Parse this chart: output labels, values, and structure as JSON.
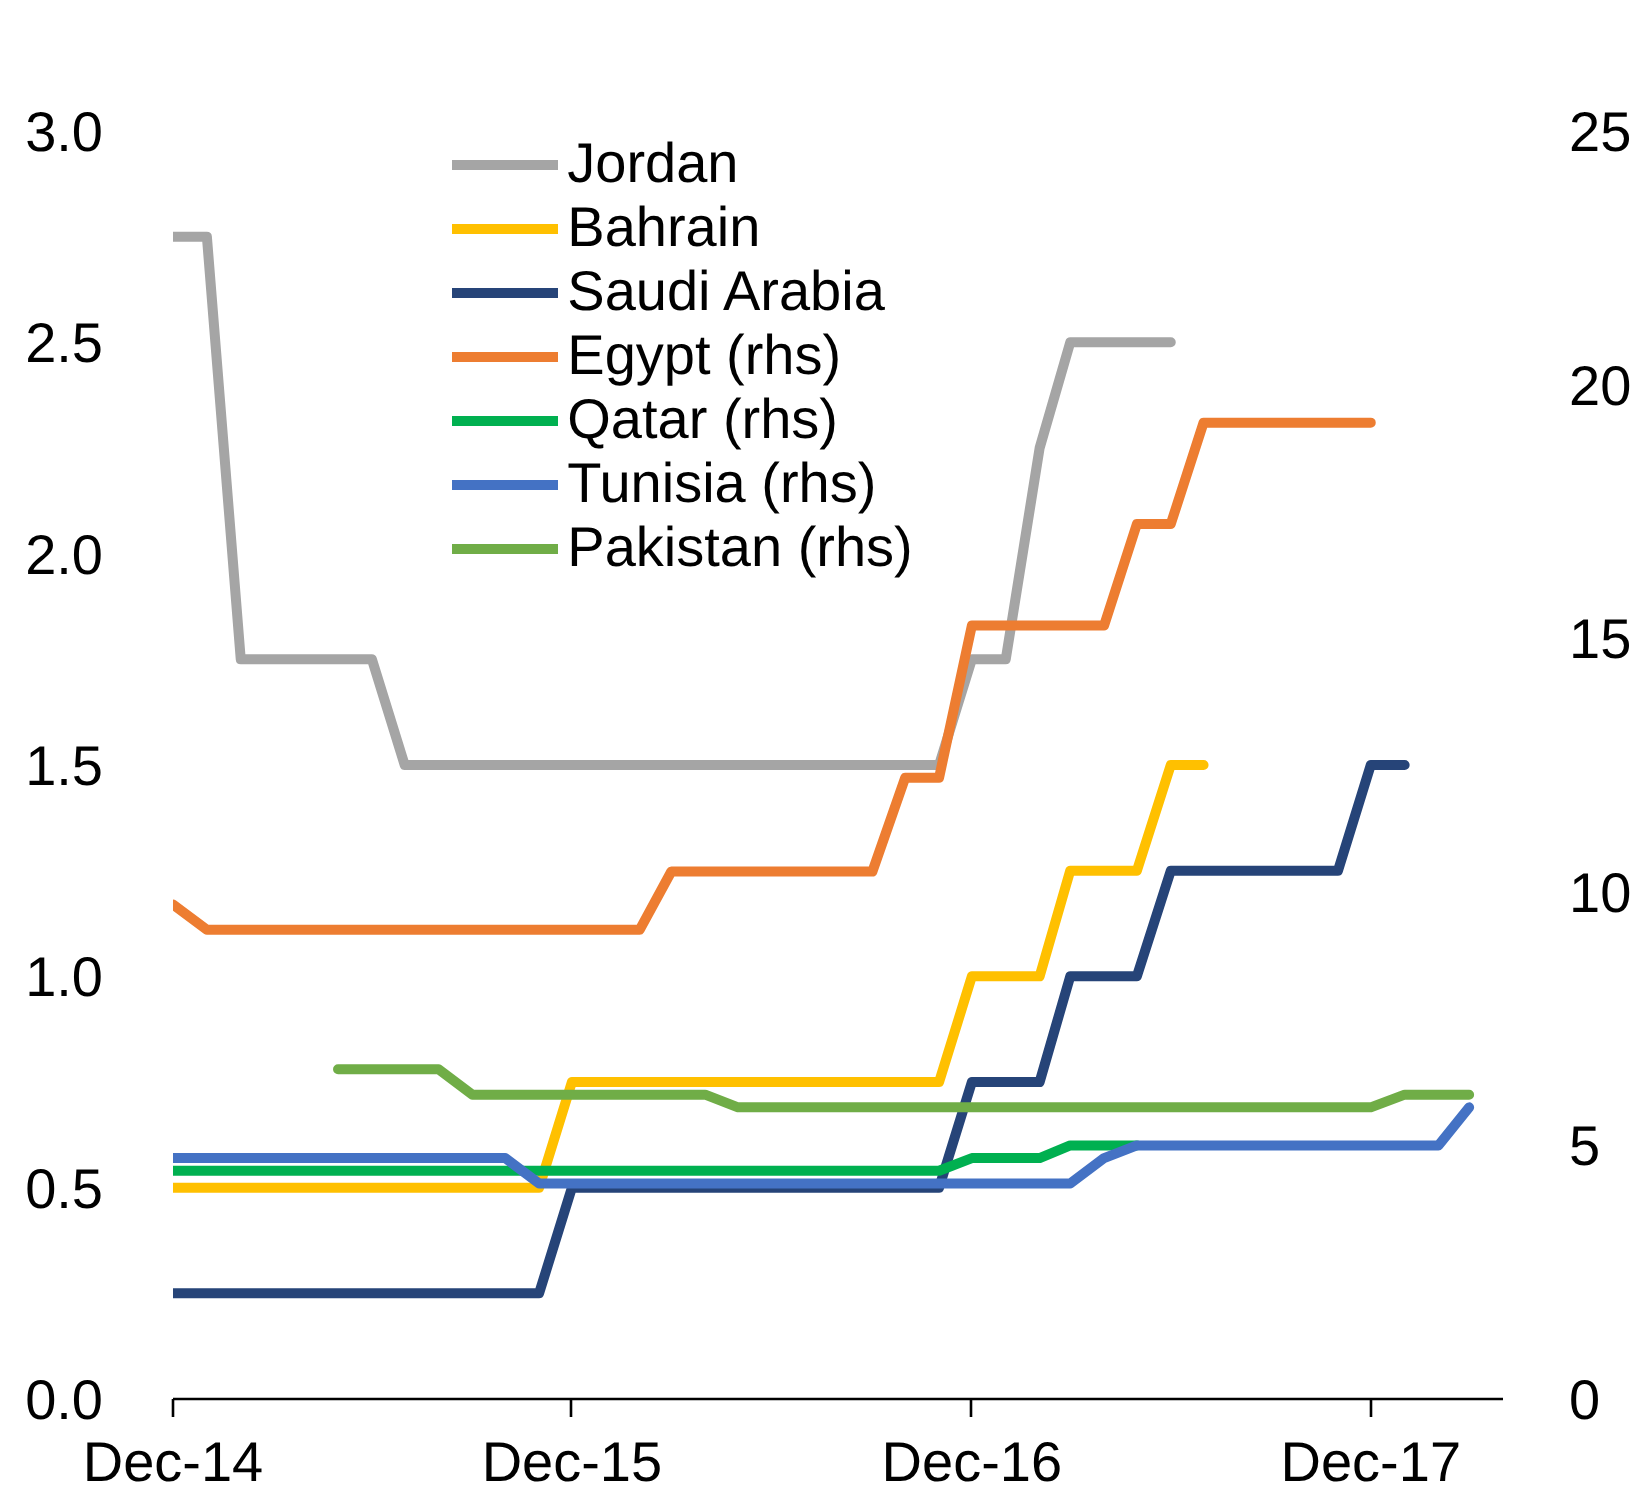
{
  "chart_data": {
    "type": "line",
    "x": [
      "2014-12",
      "2015-01",
      "2015-02",
      "2015-03",
      "2015-04",
      "2015-05",
      "2015-06",
      "2015-07",
      "2015-08",
      "2015-09",
      "2015-10",
      "2015-11",
      "2015-12",
      "2016-01",
      "2016-02",
      "2016-03",
      "2016-04",
      "2016-05",
      "2016-06",
      "2016-07",
      "2016-08",
      "2016-09",
      "2016-10",
      "2016-11",
      "2016-12",
      "2017-01",
      "2017-02",
      "2017-03",
      "2017-04",
      "2017-05",
      "2017-06",
      "2017-07",
      "2017-08",
      "2017-09",
      "2017-10",
      "2017-11",
      "2017-12",
      "2018-01",
      "2018-02",
      "2018-03"
    ],
    "xlim": [
      "2014-12",
      "2018-04"
    ],
    "xticks": [
      {
        "value": "2014-12",
        "label": "Dec-14"
      },
      {
        "value": "2015-12",
        "label": "Dec-15"
      },
      {
        "value": "2016-12",
        "label": "Dec-16"
      },
      {
        "value": "2017-12",
        "label": "Dec-17"
      }
    ],
    "ylim": [
      0,
      3.0
    ],
    "yticks": [
      {
        "value": 0,
        "label": "0.0"
      },
      0.5,
      {
        "value": 1,
        "label": "1.0"
      },
      1.5,
      {
        "value": 2,
        "label": "2.0"
      },
      2.5,
      {
        "value": 3,
        "label": "3.0"
      }
    ],
    "y2lim": [
      0,
      25
    ],
    "y2ticks": [
      0,
      5,
      10,
      15,
      20,
      25
    ],
    "legend": "top left",
    "line_style": "solid",
    "series": [
      {
        "name": "Jordan",
        "color": "#a5a5a5",
        "values": [
          2.75,
          2.75,
          1.75,
          1.75,
          1.75,
          1.75,
          1.75,
          1.5,
          1.5,
          1.5,
          1.5,
          1.5,
          1.5,
          1.5,
          1.5,
          1.5,
          1.5,
          1.5,
          1.5,
          1.5,
          1.5,
          1.5,
          1.5,
          1.5,
          1.75,
          1.75,
          2.25,
          2.5,
          2.5,
          2.5,
          2.5,
          null,
          null,
          null,
          null,
          null,
          null,
          null,
          null,
          null
        ]
      },
      {
        "name": "Bahrain",
        "color": "#ffc000",
        "values": [
          0.5,
          0.5,
          0.5,
          0.5,
          0.5,
          0.5,
          0.5,
          0.5,
          0.5,
          0.5,
          0.5,
          0.5,
          0.75,
          0.75,
          0.75,
          0.75,
          0.75,
          0.75,
          0.75,
          0.75,
          0.75,
          0.75,
          0.75,
          0.75,
          1.0,
          1.0,
          1.0,
          1.25,
          1.25,
          1.25,
          1.5,
          1.5,
          null,
          null,
          null,
          null,
          null,
          null,
          null,
          null
        ]
      },
      {
        "name": "Saudi Arabia",
        "color": "#264478",
        "values": [
          0.25,
          0.25,
          0.25,
          0.25,
          0.25,
          0.25,
          0.25,
          0.25,
          0.25,
          0.25,
          0.25,
          0.25,
          0.5,
          0.5,
          0.5,
          0.5,
          0.5,
          0.5,
          0.5,
          0.5,
          0.5,
          0.5,
          0.5,
          0.5,
          0.75,
          0.75,
          0.75,
          1.0,
          1.0,
          1.0,
          1.25,
          1.25,
          1.25,
          1.25,
          1.25,
          1.25,
          1.5,
          1.5,
          null,
          null
        ]
      },
      {
        "name": "Egypt (rhs)",
        "color": "#ed7d31",
        "axis": "y2",
        "values": [
          9.75,
          9.25,
          9.25,
          9.25,
          9.25,
          9.25,
          9.25,
          9.25,
          9.25,
          9.25,
          9.25,
          9.25,
          9.25,
          9.25,
          9.25,
          10.4,
          10.4,
          10.4,
          10.4,
          10.4,
          10.4,
          10.4,
          12.25,
          12.25,
          15.25,
          15.25,
          15.25,
          15.25,
          15.25,
          17.25,
          17.25,
          19.25,
          19.25,
          19.25,
          19.25,
          19.25,
          19.25,
          null,
          null,
          null
        ]
      },
      {
        "name": "Qatar (rhs)",
        "color": "#00b050",
        "axis": "y2",
        "values": [
          4.5,
          4.5,
          4.5,
          4.5,
          4.5,
          4.5,
          4.5,
          4.5,
          4.5,
          4.5,
          4.5,
          4.5,
          4.5,
          4.5,
          4.5,
          4.5,
          4.5,
          4.5,
          4.5,
          4.5,
          4.5,
          4.5,
          4.5,
          4.5,
          4.75,
          4.75,
          4.75,
          5.0,
          5.0,
          5.0,
          null,
          null,
          null,
          null,
          null,
          null,
          null,
          null,
          null,
          null
        ]
      },
      {
        "name": "Tunisia (rhs)",
        "color": "#4472c4",
        "axis": "y2",
        "values": [
          4.75,
          4.75,
          4.75,
          4.75,
          4.75,
          4.75,
          4.75,
          4.75,
          4.75,
          4.75,
          4.75,
          4.25,
          4.25,
          4.25,
          4.25,
          4.25,
          4.25,
          4.25,
          4.25,
          4.25,
          4.25,
          4.25,
          4.25,
          4.25,
          4.25,
          4.25,
          4.25,
          4.25,
          4.75,
          5.0,
          5.0,
          5.0,
          5.0,
          5.0,
          5.0,
          5.0,
          5.0,
          5.0,
          5.0,
          5.75
        ]
      },
      {
        "name": "Pakistan (rhs)",
        "color": "#70ad47",
        "axis": "y2",
        "values": [
          null,
          null,
          null,
          null,
          null,
          6.5,
          6.5,
          6.5,
          6.5,
          6.0,
          6.0,
          6.0,
          6.0,
          6.0,
          6.0,
          6.0,
          6.0,
          5.75,
          5.75,
          5.75,
          5.75,
          5.75,
          5.75,
          5.75,
          5.75,
          5.75,
          5.75,
          5.75,
          5.75,
          5.75,
          5.75,
          5.75,
          5.75,
          5.75,
          5.75,
          5.75,
          5.75,
          6.0,
          6.0,
          6.0
        ]
      }
    ]
  }
}
